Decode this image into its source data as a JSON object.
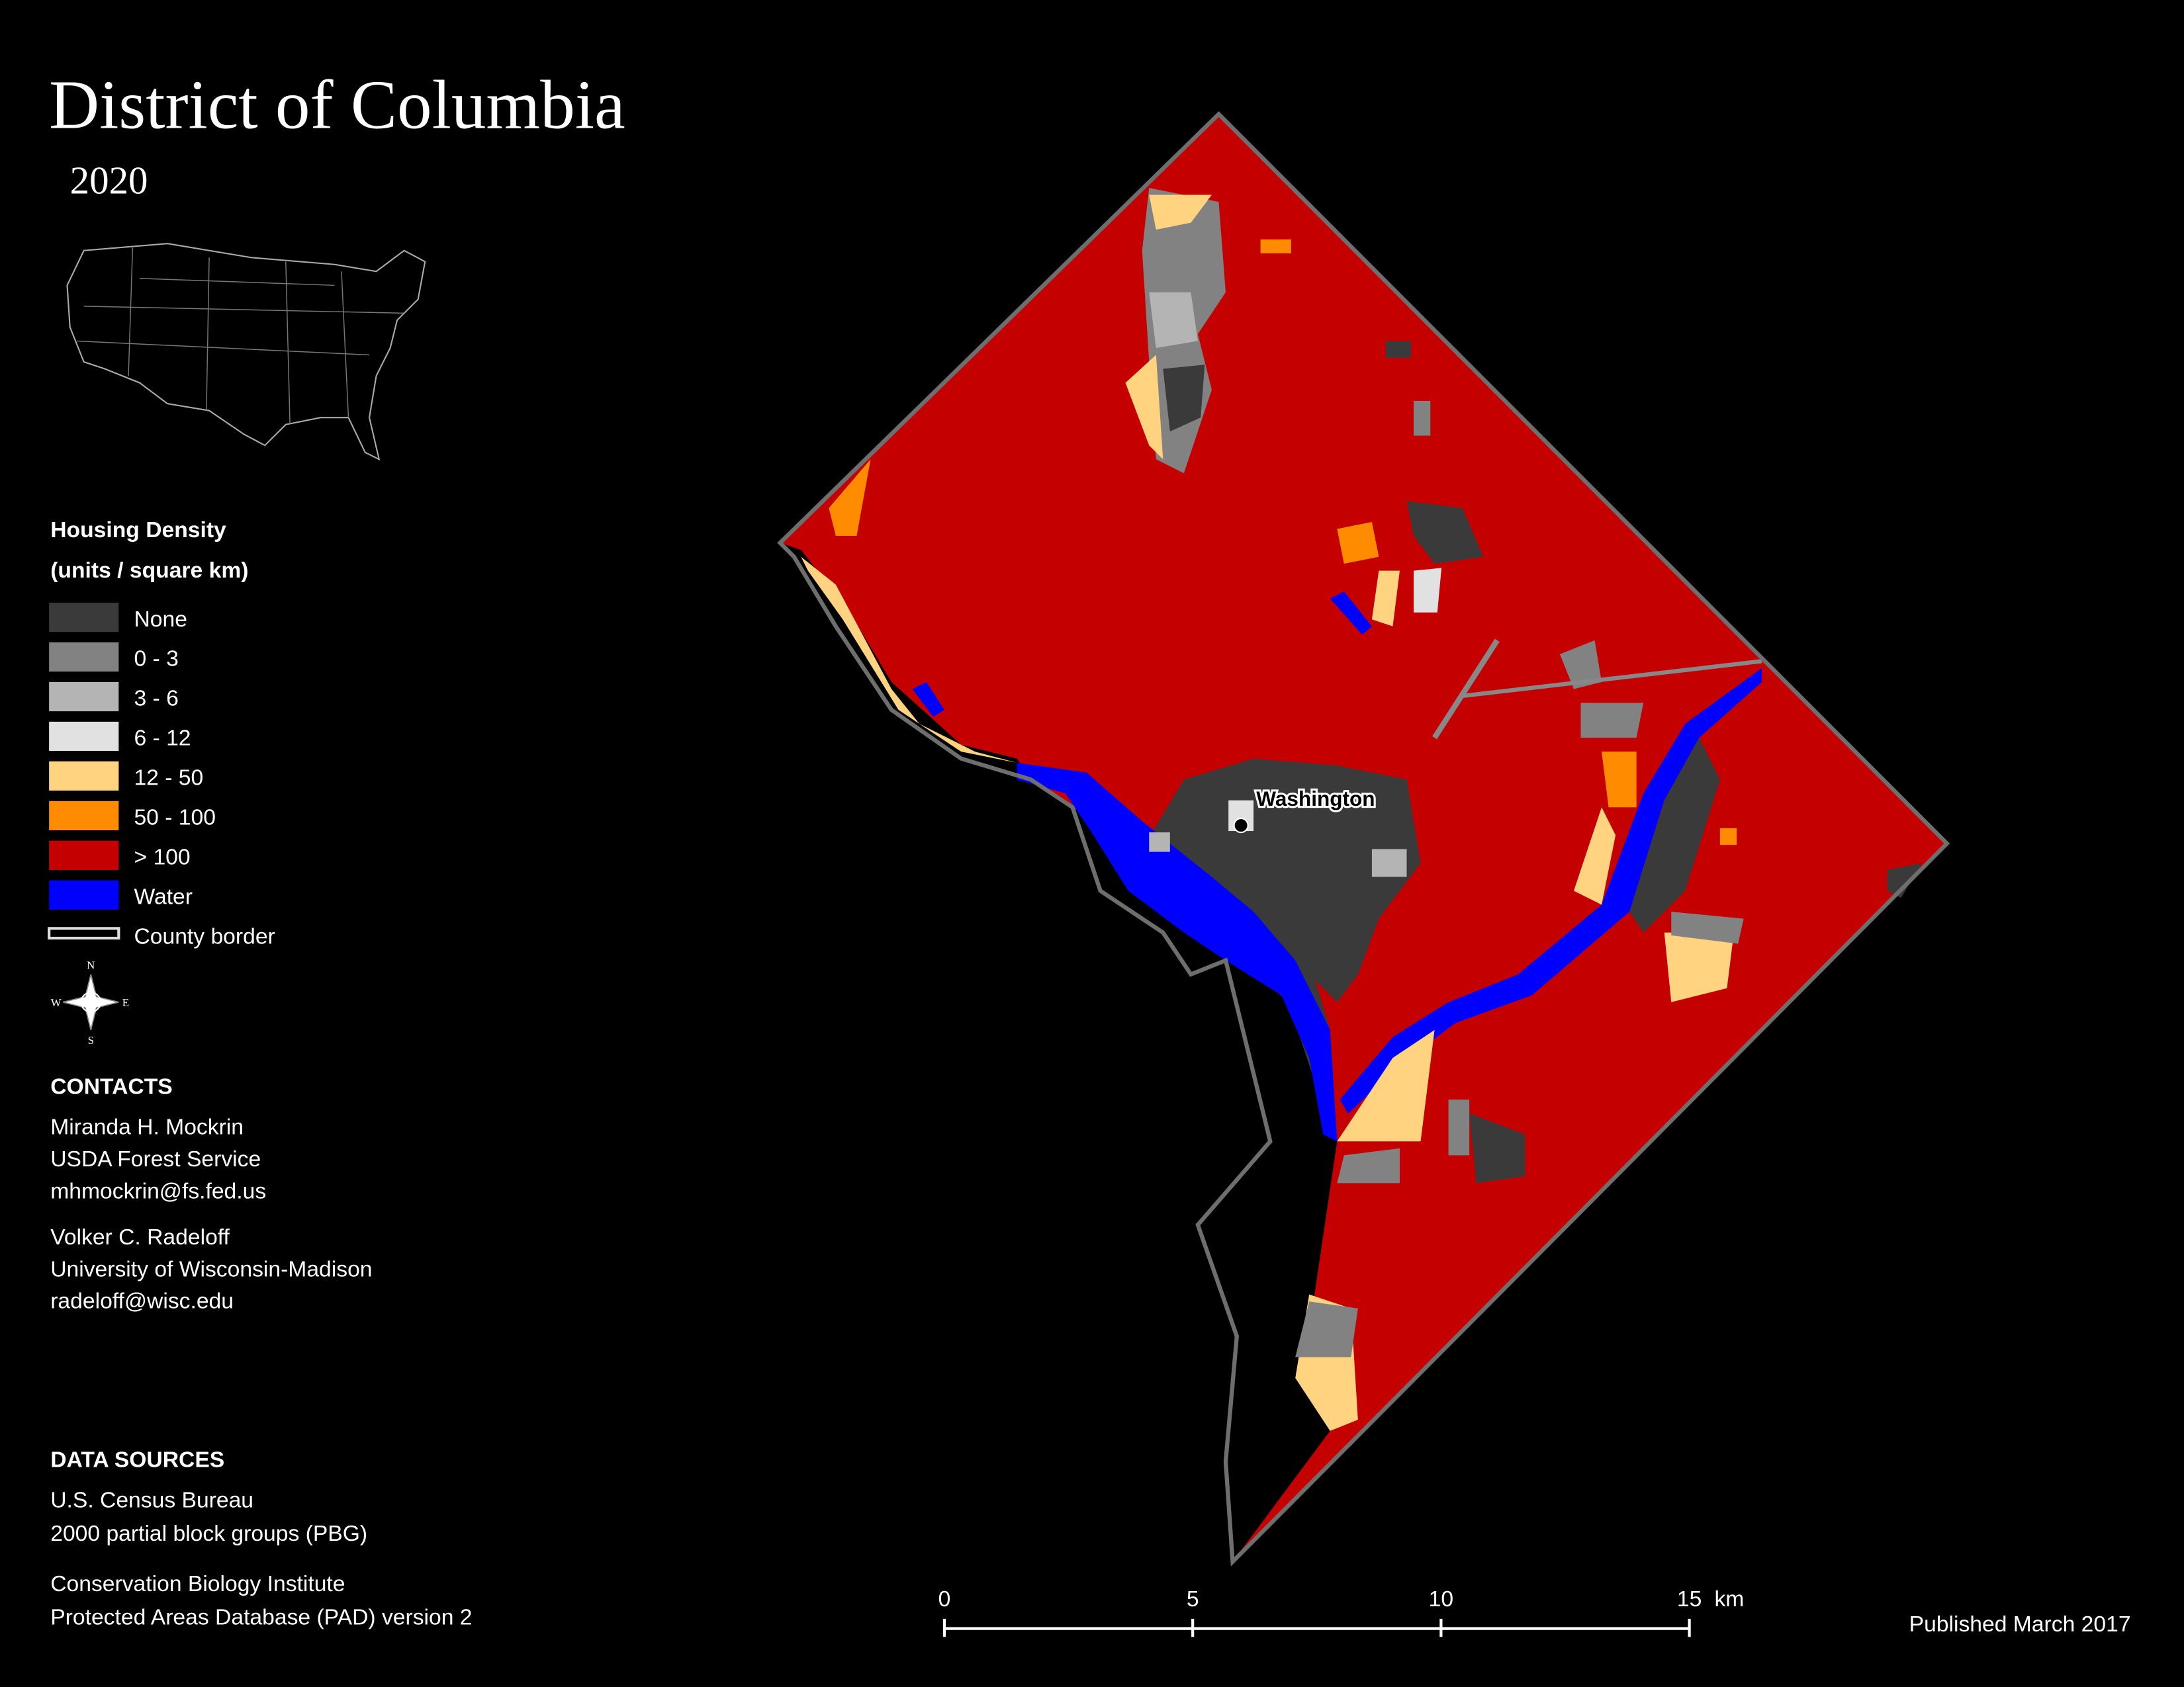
{
  "title": "District of Columbia",
  "subtitle": "2020",
  "legend": {
    "title": "Housing Density",
    "subtitle": "(units / square km)",
    "items": [
      {
        "label": "None",
        "color": "#3a3a3a"
      },
      {
        "label": "0 - 3",
        "color": "#828282"
      },
      {
        "label": "3 - 6",
        "color": "#b4b4b4"
      },
      {
        "label": "6 - 12",
        "color": "#e1e1e1"
      },
      {
        "label": "12 - 50",
        "color": "#ffd37f"
      },
      {
        "label": "50 - 100",
        "color": "#ff8c00"
      },
      {
        "label": "> 100",
        "color": "#c40000"
      },
      {
        "label": "Water",
        "color": "#0000ff"
      },
      {
        "label": "County border",
        "color": "#6e6e6e"
      }
    ]
  },
  "compass": {
    "n": "N",
    "s": "S",
    "e": "E",
    "w": "W"
  },
  "city_label": "Washington",
  "contacts": {
    "heading": "CONTACTS",
    "people": [
      [
        "Miranda H. Mockrin",
        "USDA Forest Service",
        "mhmockrin@fs.fed.us"
      ],
      [
        "Volker C. Radeloff",
        "University of Wisconsin-Madison",
        "radeloff@wisc.edu"
      ]
    ]
  },
  "data_sources": {
    "heading": "DATA SOURCES",
    "entries": [
      [
        "U.S. Census Bureau",
        "2000 partial block groups (PBG)"
      ],
      [
        "Conservation Biology Institute",
        "Protected Areas Database (PAD) version 2"
      ]
    ]
  },
  "scale_bar": {
    "ticks": [
      0,
      5,
      10,
      15
    ],
    "unit": "km"
  },
  "footer": "Published March 2017"
}
